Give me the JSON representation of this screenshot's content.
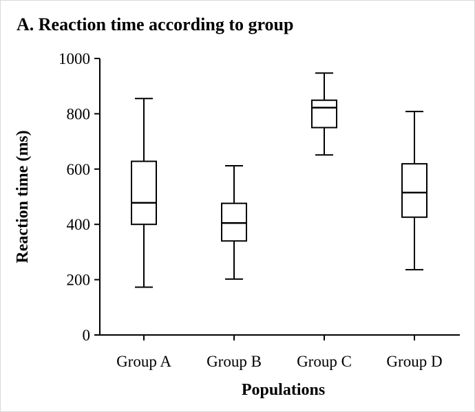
{
  "chart_data": {
    "type": "boxplot",
    "title": "A. Reaction time according to group",
    "xlabel": "Populations",
    "ylabel": "Reaction time (ms)",
    "ylim": [
      0,
      1000
    ],
    "yticks": [
      0,
      200,
      400,
      600,
      800,
      1000
    ],
    "grid": false,
    "categories": [
      "Group A",
      "Group B",
      "Group C",
      "Group D"
    ],
    "series": [
      {
        "boxes": [
          {
            "min": 173,
            "q1": 400,
            "median": 478,
            "q3": 628,
            "max": 855
          },
          {
            "min": 202,
            "q1": 340,
            "median": 405,
            "q3": 476,
            "max": 612
          },
          {
            "min": 651,
            "q1": 750,
            "median": 822,
            "q3": 849,
            "max": 947
          },
          {
            "min": 236,
            "q1": 426,
            "median": 515,
            "q3": 619,
            "max": 808
          }
        ]
      }
    ],
    "colors": {
      "stroke": "#000000",
      "box_fill": "#ffffff"
    }
  }
}
